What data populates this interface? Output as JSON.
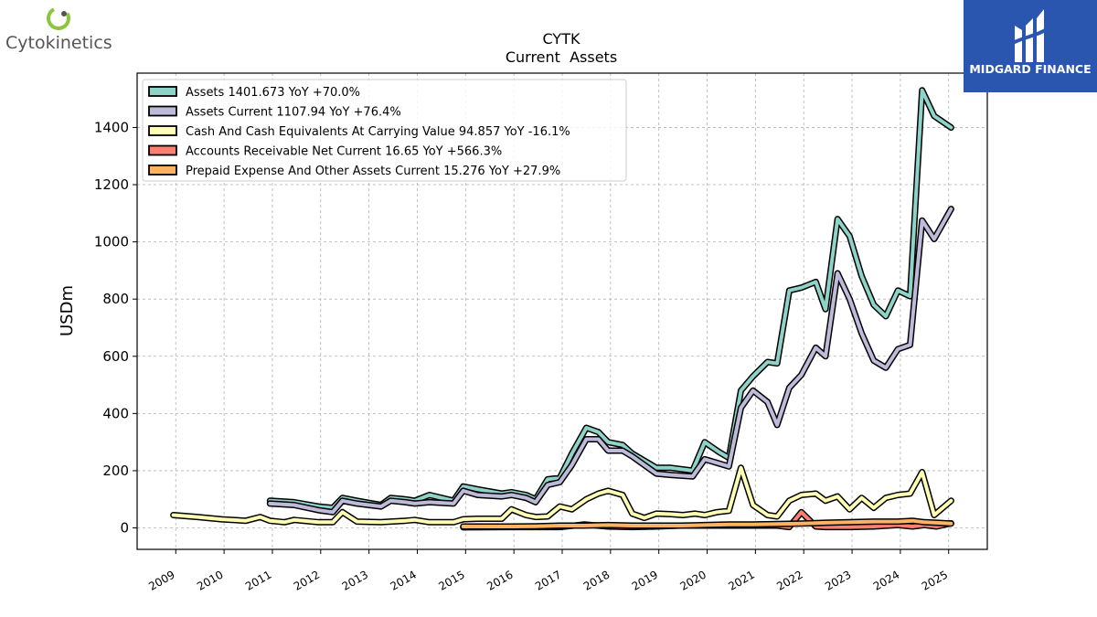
{
  "brand_left": {
    "name": "Cytokinetics",
    "mark_color": "#8cc63f"
  },
  "brand_right": {
    "name": "MIDGARD FINANCE",
    "bg_color": "#2a56b0"
  },
  "chart_data": {
    "type": "line",
    "title": "CYTK",
    "subtitle": "Current  Assets",
    "ylabel": "USDm",
    "xlabel": "",
    "ylim": [
      -75,
      1590
    ],
    "xlim": [
      2008.2,
      2025.8
    ],
    "yticks": [
      0,
      200,
      400,
      600,
      800,
      1000,
      1200,
      1400
    ],
    "xticks": [
      "2009",
      "2010",
      "2011",
      "2012",
      "2013",
      "2014",
      "2015",
      "2016",
      "2017",
      "2018",
      "2019",
      "2020",
      "2021",
      "2022",
      "2023",
      "2024",
      "2025"
    ],
    "grid": true,
    "legend_position": "top-left",
    "series": [
      {
        "name": "Assets",
        "legend": "Assets  1401.673 YoY +70.0%",
        "color": "#8dd3c7",
        "points": [
          [
            2010.95,
            95
          ],
          [
            2011.45,
            90
          ],
          [
            2011.95,
            75
          ],
          [
            2012.25,
            70
          ],
          [
            2012.45,
            105
          ],
          [
            2012.75,
            95
          ],
          [
            2013.25,
            80
          ],
          [
            2013.45,
            105
          ],
          [
            2013.75,
            100
          ],
          [
            2013.95,
            95
          ],
          [
            2014.25,
            115
          ],
          [
            2014.75,
            95
          ],
          [
            2014.95,
            145
          ],
          [
            2015.25,
            135
          ],
          [
            2015.75,
            120
          ],
          [
            2015.95,
            125
          ],
          [
            2016.25,
            115
          ],
          [
            2016.45,
            100
          ],
          [
            2016.7,
            170
          ],
          [
            2016.95,
            175
          ],
          [
            2017.2,
            260
          ],
          [
            2017.5,
            350
          ],
          [
            2017.75,
            335
          ],
          [
            2017.95,
            300
          ],
          [
            2018.25,
            290
          ],
          [
            2018.45,
            260
          ],
          [
            2018.95,
            210
          ],
          [
            2019.25,
            210
          ],
          [
            2019.7,
            200
          ],
          [
            2019.95,
            300
          ],
          [
            2020.25,
            265
          ],
          [
            2020.45,
            245
          ],
          [
            2020.7,
            480
          ],
          [
            2020.95,
            530
          ],
          [
            2021.25,
            580
          ],
          [
            2021.45,
            575
          ],
          [
            2021.7,
            830
          ],
          [
            2021.95,
            840
          ],
          [
            2022.25,
            860
          ],
          [
            2022.45,
            765
          ],
          [
            2022.7,
            1080
          ],
          [
            2022.95,
            1020
          ],
          [
            2023.2,
            880
          ],
          [
            2023.45,
            780
          ],
          [
            2023.7,
            740
          ],
          [
            2023.95,
            830
          ],
          [
            2024.2,
            810
          ],
          [
            2024.45,
            1530
          ],
          [
            2024.7,
            1440
          ],
          [
            2025.05,
            1400
          ]
        ]
      },
      {
        "name": "Assets Current",
        "legend": "Assets Current  1107.94 YoY +76.4%",
        "color": "#bebada",
        "points": [
          [
            2010.95,
            85
          ],
          [
            2011.45,
            80
          ],
          [
            2011.95,
            62
          ],
          [
            2012.25,
            55
          ],
          [
            2012.45,
            95
          ],
          [
            2012.75,
            85
          ],
          [
            2013.25,
            75
          ],
          [
            2013.45,
            95
          ],
          [
            2013.75,
            90
          ],
          [
            2013.95,
            85
          ],
          [
            2014.25,
            90
          ],
          [
            2014.75,
            85
          ],
          [
            2014.95,
            130
          ],
          [
            2015.25,
            115
          ],
          [
            2015.75,
            110
          ],
          [
            2015.95,
            115
          ],
          [
            2016.25,
            105
          ],
          [
            2016.45,
            90
          ],
          [
            2016.7,
            150
          ],
          [
            2016.95,
            160
          ],
          [
            2017.2,
            220
          ],
          [
            2017.5,
            310
          ],
          [
            2017.75,
            310
          ],
          [
            2017.95,
            270
          ],
          [
            2018.25,
            270
          ],
          [
            2018.45,
            250
          ],
          [
            2018.95,
            190
          ],
          [
            2019.25,
            185
          ],
          [
            2019.7,
            180
          ],
          [
            2019.95,
            240
          ],
          [
            2020.25,
            225
          ],
          [
            2020.45,
            215
          ],
          [
            2020.7,
            420
          ],
          [
            2020.95,
            480
          ],
          [
            2021.25,
            440
          ],
          [
            2021.45,
            360
          ],
          [
            2021.7,
            490
          ],
          [
            2021.95,
            535
          ],
          [
            2022.25,
            630
          ],
          [
            2022.45,
            600
          ],
          [
            2022.7,
            890
          ],
          [
            2022.95,
            800
          ],
          [
            2023.2,
            680
          ],
          [
            2023.45,
            585
          ],
          [
            2023.7,
            560
          ],
          [
            2023.95,
            625
          ],
          [
            2024.2,
            640
          ],
          [
            2024.45,
            1075
          ],
          [
            2024.7,
            1010
          ],
          [
            2025.05,
            1115
          ]
        ]
      },
      {
        "name": "Cash And Cash Equivalents At Carrying Value",
        "legend": "Cash And Cash Equivalents At Carrying Value  94.857 YoY -16.1%",
        "color": "#ffffb3",
        "points": [
          [
            2008.95,
            45
          ],
          [
            2009.45,
            38
          ],
          [
            2009.95,
            30
          ],
          [
            2010.45,
            25
          ],
          [
            2010.75,
            38
          ],
          [
            2010.95,
            25
          ],
          [
            2011.25,
            20
          ],
          [
            2011.45,
            28
          ],
          [
            2011.95,
            20
          ],
          [
            2012.25,
            20
          ],
          [
            2012.45,
            55
          ],
          [
            2012.75,
            22
          ],
          [
            2013.25,
            20
          ],
          [
            2013.45,
            22
          ],
          [
            2013.75,
            25
          ],
          [
            2013.95,
            28
          ],
          [
            2014.25,
            20
          ],
          [
            2014.75,
            20
          ],
          [
            2014.95,
            30
          ],
          [
            2015.25,
            32
          ],
          [
            2015.75,
            32
          ],
          [
            2015.95,
            65
          ],
          [
            2016.25,
            45
          ],
          [
            2016.45,
            38
          ],
          [
            2016.7,
            40
          ],
          [
            2016.95,
            75
          ],
          [
            2017.2,
            65
          ],
          [
            2017.5,
            100
          ],
          [
            2017.75,
            120
          ],
          [
            2017.95,
            130
          ],
          [
            2018.25,
            115
          ],
          [
            2018.45,
            50
          ],
          [
            2018.7,
            35
          ],
          [
            2018.95,
            50
          ],
          [
            2019.25,
            48
          ],
          [
            2019.5,
            45
          ],
          [
            2019.75,
            50
          ],
          [
            2019.95,
            45
          ],
          [
            2020.2,
            55
          ],
          [
            2020.45,
            60
          ],
          [
            2020.7,
            210
          ],
          [
            2020.95,
            80
          ],
          [
            2021.25,
            45
          ],
          [
            2021.45,
            40
          ],
          [
            2021.7,
            95
          ],
          [
            2021.95,
            115
          ],
          [
            2022.25,
            120
          ],
          [
            2022.45,
            95
          ],
          [
            2022.7,
            110
          ],
          [
            2022.95,
            65
          ],
          [
            2023.2,
            105
          ],
          [
            2023.45,
            70
          ],
          [
            2023.7,
            105
          ],
          [
            2023.95,
            115
          ],
          [
            2024.2,
            120
          ],
          [
            2024.45,
            195
          ],
          [
            2024.7,
            45
          ],
          [
            2025.05,
            95
          ]
        ]
      },
      {
        "name": "Accounts Receivable Net Current",
        "legend": "Accounts Receivable Net Current  16.65 YoY +566.3%",
        "color": "#fb8072",
        "points": [
          [
            2014.95,
            2
          ],
          [
            2015.95,
            3
          ],
          [
            2016.95,
            3
          ],
          [
            2017.45,
            12
          ],
          [
            2017.95,
            5
          ],
          [
            2018.45,
            3
          ],
          [
            2018.95,
            5
          ],
          [
            2019.45,
            8
          ],
          [
            2019.95,
            8
          ],
          [
            2020.45,
            8
          ],
          [
            2020.95,
            8
          ],
          [
            2021.45,
            8
          ],
          [
            2021.7,
            3
          ],
          [
            2021.95,
            55
          ],
          [
            2022.25,
            5
          ],
          [
            2022.45,
            3
          ],
          [
            2022.95,
            3
          ],
          [
            2023.45,
            5
          ],
          [
            2023.95,
            10
          ],
          [
            2024.25,
            5
          ],
          [
            2024.5,
            10
          ],
          [
            2024.75,
            5
          ],
          [
            2025.05,
            16
          ]
        ]
      },
      {
        "name": "Prepaid Expense And Other Assets Current",
        "legend": "Prepaid Expense And Other Assets Current  15.276 YoY +27.9%",
        "color": "#fdb462",
        "points": [
          [
            2014.95,
            5
          ],
          [
            2015.45,
            5
          ],
          [
            2015.95,
            5
          ],
          [
            2016.45,
            6
          ],
          [
            2016.95,
            8
          ],
          [
            2017.45,
            8
          ],
          [
            2017.95,
            10
          ],
          [
            2018.45,
            8
          ],
          [
            2018.95,
            8
          ],
          [
            2019.45,
            8
          ],
          [
            2019.95,
            10
          ],
          [
            2020.45,
            12
          ],
          [
            2020.95,
            12
          ],
          [
            2021.45,
            14
          ],
          [
            2021.95,
            15
          ],
          [
            2022.45,
            18
          ],
          [
            2022.95,
            20
          ],
          [
            2023.45,
            22
          ],
          [
            2023.95,
            22
          ],
          [
            2024.25,
            25
          ],
          [
            2024.5,
            20
          ],
          [
            2024.75,
            18
          ],
          [
            2025.05,
            15
          ]
        ]
      }
    ]
  }
}
